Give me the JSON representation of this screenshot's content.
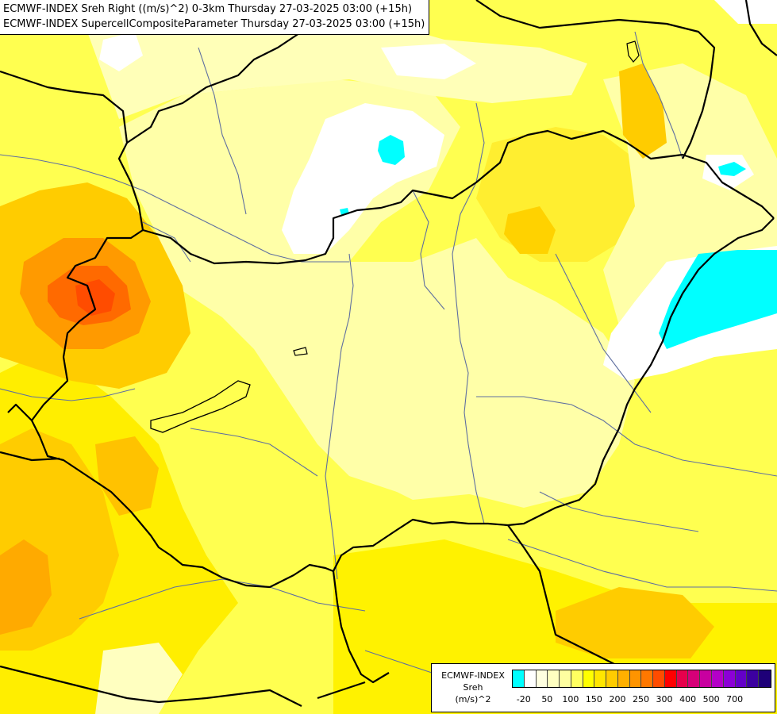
{
  "header": {
    "line1": "ECMWF-INDEX Sreh Right ((m/s)^2) 0-3km Thursday 27-03-2025 03:00 (+15h)",
    "line2": "ECMWF-INDEX SupercellCompositeParameter Thursday 27-03-2025 03:00 (+15h)"
  },
  "legend": {
    "line1": "ECMWF-INDEX",
    "line2": "Sreh",
    "line3": "(m/s)^2",
    "colors": [
      "#00ffff",
      "#ffffff",
      "#ffffe0",
      "#ffffc0",
      "#ffffa0",
      "#ffff60",
      "#ffff00",
      "#ffe600",
      "#ffcc00",
      "#ffb000",
      "#ff9400",
      "#ff7800",
      "#ff4c00",
      "#ff0000",
      "#e6004c",
      "#d60078",
      "#c800a0",
      "#b400c8",
      "#8c00d6",
      "#6400c8",
      "#3c00a0",
      "#1e0078"
    ],
    "tick_labels": [
      "-20",
      "50",
      "100",
      "150",
      "200",
      "250",
      "300",
      "400",
      "500",
      "700"
    ]
  },
  "map_colors": {
    "background": "#ffff60",
    "borders": "#000000",
    "rivers": "#5f6fa0"
  }
}
